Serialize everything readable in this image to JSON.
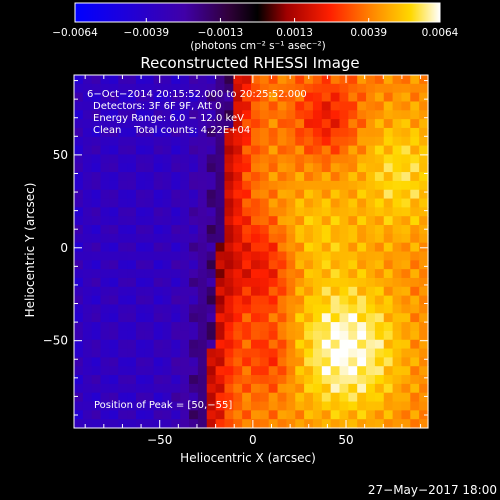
{
  "chart_data": {
    "type": "heatmap",
    "title": "Reconstructed RHESSI Image",
    "xlabel": "Heliocentric X (arcsec)",
    "ylabel": "Heliocentric Y (arcsec)",
    "xlim": [
      -96,
      94
    ],
    "ylim": [
      -97,
      93
    ],
    "x_ticks": [
      -50,
      0,
      50
    ],
    "x_tick_labels": [
      "−50",
      "0",
      "50"
    ],
    "y_ticks": [
      -50,
      0,
      50
    ],
    "y_tick_labels": [
      "−50",
      "0",
      "50"
    ],
    "colorbar": {
      "range": [
        -0.0064,
        0.0064
      ],
      "ticks": [
        -0.0064,
        -0.0039,
        -0.0013,
        0.0013,
        0.0039,
        0.0064
      ],
      "tick_labels": [
        "−0.0064",
        "−0.0039",
        "−0.0013",
        "0.0013",
        "0.0039",
        "0.0064"
      ],
      "units": "(photons cm⁻² s⁻¹ asec⁻²)",
      "colormap": "blue-purple-red-yellow-white"
    },
    "info_lines": [
      "6−Oct−2014 20:15:52.000 to 20:25:52.000",
      "Detectors: 3F 6F 9F, Att 0",
      "Energy Range: 6.0 − 12.0 keV",
      "Clean    Total counts: 4.22E+04"
    ],
    "peak_label": "Position of Peak = [50,−55]",
    "peak_position": [
      50,
      -55
    ],
    "grid": false
  },
  "footer": {
    "timestamp": "27−May−2017 18:00"
  }
}
